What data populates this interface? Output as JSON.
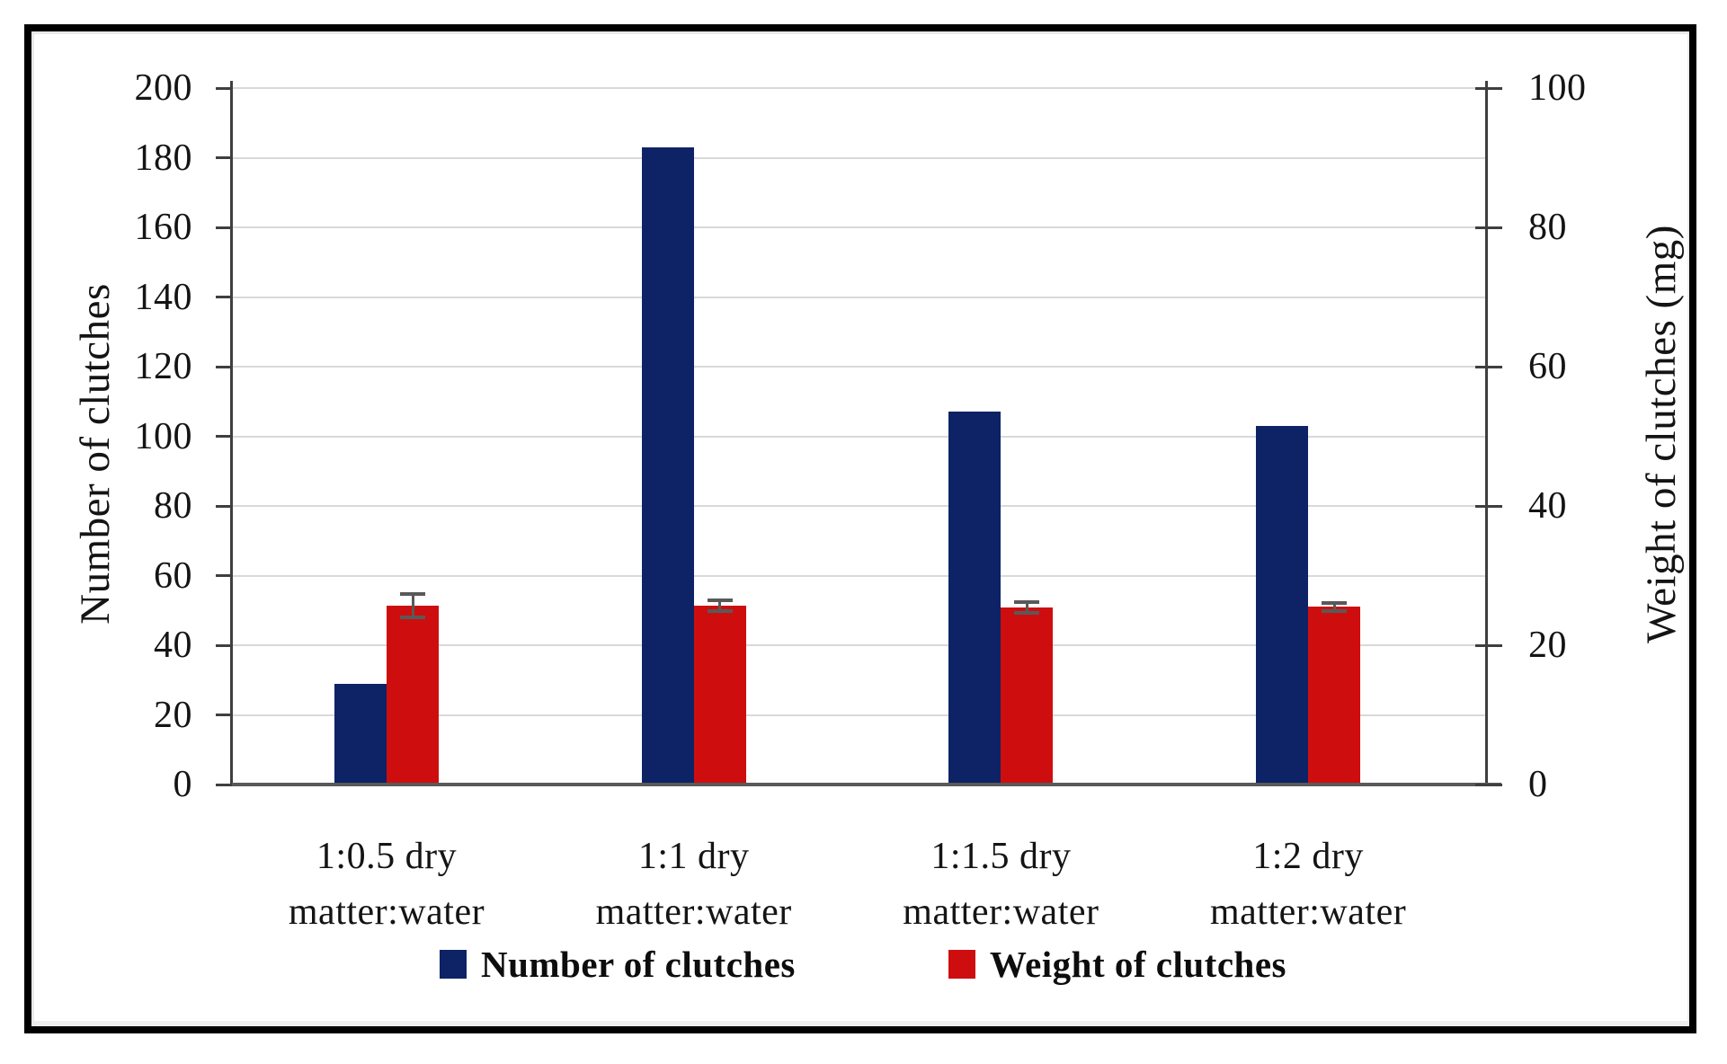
{
  "chart_data": {
    "type": "bar",
    "title": "",
    "categories": [
      "1:0.5 dry matter:water",
      "1:1 dry matter:water",
      "1:1.5 dry matter:water",
      "1:2 dry matter:water"
    ],
    "category_lines": [
      [
        "1:0.5 dry",
        "matter:water"
      ],
      [
        "1:1 dry",
        "matter:water"
      ],
      [
        "1:1.5 dry",
        "matter:water"
      ],
      [
        "1:2 dry",
        "matter:water"
      ]
    ],
    "series": [
      {
        "name": "Number of clutches",
        "axis": "left",
        "color": "#0d2366",
        "values": [
          29,
          183,
          107,
          103
        ]
      },
      {
        "name": "Weight of clutches",
        "axis": "right",
        "color": "#ce0e0e",
        "values": [
          25.7,
          25.7,
          25.4,
          25.5
        ],
        "error_bars": [
          1.7,
          0.8,
          0.8,
          0.6
        ]
      }
    ],
    "left_axis": {
      "label": "Number of clutches",
      "min": 0,
      "max": 200,
      "tick_step": 20
    },
    "right_axis": {
      "label": "Weight of clutches (mg)",
      "min": 0,
      "max": 100,
      "tick_step": 20
    },
    "gridlines": {
      "shown": true,
      "step_left_units": 20,
      "color": "#d9d9d9"
    },
    "legend": {
      "position": "bottom",
      "items": [
        {
          "label": "Number of clutches",
          "color": "#0d2366"
        },
        {
          "label": "Weight of clutches",
          "color": "#ce0e0e"
        }
      ]
    },
    "colors": {
      "grid": "#d9d9d9",
      "axis": "#3f3f3f",
      "baseline": "#595959",
      "error_bar": "#595959"
    }
  }
}
